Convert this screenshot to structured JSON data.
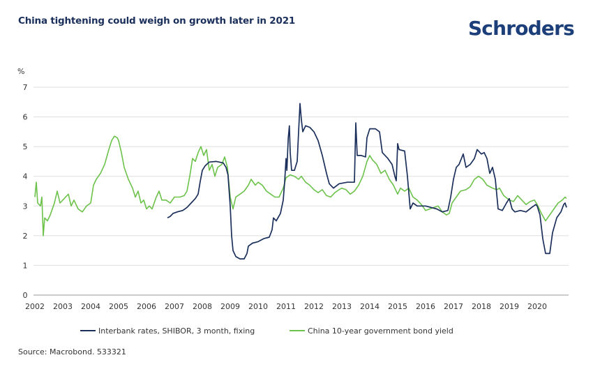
{
  "header": {
    "title": "China tightening could weigh on growth later in 2021",
    "brand": "Schroders"
  },
  "footer": {
    "source": "Source: Macrobond. 533321"
  },
  "colors": {
    "shibor": "#1b2f5b",
    "bond": "#6cc24a",
    "grid": "#dddddd",
    "axis": "#bbbbbb",
    "title": "#1b2f5b",
    "brand": "#1c3f7a"
  },
  "chart_data": {
    "type": "line",
    "title": "China tightening could weigh on growth later in 2021",
    "xlabel": "",
    "ylabel": "%",
    "xlim": [
      2002,
      2021.1
    ],
    "ylim": [
      0,
      7
    ],
    "yticks": [
      0,
      1,
      2,
      3,
      4,
      5,
      6,
      7
    ],
    "xtick_labels": [
      "2002",
      "2003",
      "2004",
      "2005",
      "2006",
      "2007",
      "2008",
      "2009",
      "2010",
      "2011",
      "2012",
      "2013",
      "2014",
      "2015",
      "2016",
      "2017",
      "2018",
      "2019",
      "2020"
    ],
    "grid": true,
    "legend_position": "bottom",
    "series": [
      {
        "name": "Interbank rates, SHIBOR, 3 month, fixing",
        "key": "shibor",
        "points": [
          [
            2006.75,
            2.6
          ],
          [
            2006.85,
            2.65
          ],
          [
            2006.95,
            2.75
          ],
          [
            2007.1,
            2.8
          ],
          [
            2007.3,
            2.85
          ],
          [
            2007.45,
            2.95
          ],
          [
            2007.6,
            3.1
          ],
          [
            2007.75,
            3.25
          ],
          [
            2007.85,
            3.4
          ],
          [
            2007.92,
            3.8
          ],
          [
            2008.0,
            4.2
          ],
          [
            2008.1,
            4.35
          ],
          [
            2008.25,
            4.48
          ],
          [
            2008.5,
            4.5
          ],
          [
            2008.75,
            4.45
          ],
          [
            2008.85,
            4.3
          ],
          [
            2008.92,
            4.05
          ],
          [
            2009.0,
            3.0
          ],
          [
            2009.05,
            2.0
          ],
          [
            2009.1,
            1.5
          ],
          [
            2009.2,
            1.3
          ],
          [
            2009.35,
            1.22
          ],
          [
            2009.5,
            1.22
          ],
          [
            2009.6,
            1.4
          ],
          [
            2009.65,
            1.65
          ],
          [
            2009.8,
            1.75
          ],
          [
            2010.0,
            1.8
          ],
          [
            2010.2,
            1.9
          ],
          [
            2010.4,
            1.95
          ],
          [
            2010.5,
            2.2
          ],
          [
            2010.55,
            2.6
          ],
          [
            2010.65,
            2.5
          ],
          [
            2010.8,
            2.75
          ],
          [
            2010.9,
            3.2
          ],
          [
            2010.95,
            3.8
          ],
          [
            2011.0,
            4.6
          ],
          [
            2011.03,
            4.2
          ],
          [
            2011.08,
            5.3
          ],
          [
            2011.12,
            5.7
          ],
          [
            2011.15,
            4.8
          ],
          [
            2011.2,
            4.2
          ],
          [
            2011.3,
            4.2
          ],
          [
            2011.4,
            4.5
          ],
          [
            2011.45,
            5.5
          ],
          [
            2011.5,
            6.45
          ],
          [
            2011.55,
            5.9
          ],
          [
            2011.6,
            5.5
          ],
          [
            2011.7,
            5.7
          ],
          [
            2011.85,
            5.65
          ],
          [
            2012.0,
            5.5
          ],
          [
            2012.15,
            5.2
          ],
          [
            2012.3,
            4.7
          ],
          [
            2012.45,
            4.1
          ],
          [
            2012.55,
            3.75
          ],
          [
            2012.7,
            3.6
          ],
          [
            2012.9,
            3.75
          ],
          [
            2013.2,
            3.8
          ],
          [
            2013.45,
            3.8
          ],
          [
            2013.5,
            5.8
          ],
          [
            2013.55,
            4.7
          ],
          [
            2013.7,
            4.7
          ],
          [
            2013.85,
            4.65
          ],
          [
            2013.9,
            5.3
          ],
          [
            2014.0,
            5.6
          ],
          [
            2014.2,
            5.6
          ],
          [
            2014.35,
            5.5
          ],
          [
            2014.45,
            4.8
          ],
          [
            2014.65,
            4.6
          ],
          [
            2014.8,
            4.4
          ],
          [
            2014.9,
            4.0
          ],
          [
            2014.95,
            3.85
          ],
          [
            2015.0,
            5.1
          ],
          [
            2015.05,
            4.9
          ],
          [
            2015.25,
            4.85
          ],
          [
            2015.35,
            4.0
          ],
          [
            2015.45,
            2.9
          ],
          [
            2015.55,
            3.1
          ],
          [
            2015.7,
            3.0
          ],
          [
            2016.0,
            3.0
          ],
          [
            2016.2,
            2.95
          ],
          [
            2016.4,
            2.9
          ],
          [
            2016.6,
            2.8
          ],
          [
            2016.8,
            2.85
          ],
          [
            2016.9,
            3.3
          ],
          [
            2017.0,
            3.9
          ],
          [
            2017.1,
            4.3
          ],
          [
            2017.2,
            4.4
          ],
          [
            2017.35,
            4.75
          ],
          [
            2017.45,
            4.3
          ],
          [
            2017.6,
            4.4
          ],
          [
            2017.75,
            4.6
          ],
          [
            2017.85,
            4.9
          ],
          [
            2018.0,
            4.75
          ],
          [
            2018.1,
            4.8
          ],
          [
            2018.2,
            4.6
          ],
          [
            2018.3,
            4.1
          ],
          [
            2018.4,
            4.3
          ],
          [
            2018.5,
            3.9
          ],
          [
            2018.6,
            2.9
          ],
          [
            2018.75,
            2.85
          ],
          [
            2018.9,
            3.1
          ],
          [
            2019.0,
            3.25
          ],
          [
            2019.1,
            2.9
          ],
          [
            2019.2,
            2.8
          ],
          [
            2019.4,
            2.85
          ],
          [
            2019.6,
            2.8
          ],
          [
            2019.8,
            2.95
          ],
          [
            2019.95,
            3.05
          ],
          [
            2020.0,
            3.0
          ],
          [
            2020.1,
            2.7
          ],
          [
            2020.2,
            1.9
          ],
          [
            2020.3,
            1.4
          ],
          [
            2020.45,
            1.4
          ],
          [
            2020.55,
            2.1
          ],
          [
            2020.7,
            2.6
          ],
          [
            2020.85,
            2.8
          ],
          [
            2020.95,
            3.05
          ],
          [
            2021.0,
            3.1
          ],
          [
            2021.05,
            2.95
          ]
        ]
      },
      {
        "name": "China 10-year government bond yield",
        "key": "bond",
        "points": [
          [
            2002.0,
            3.3
          ],
          [
            2002.05,
            3.8
          ],
          [
            2002.1,
            3.1
          ],
          [
            2002.2,
            3.0
          ],
          [
            2002.25,
            3.3
          ],
          [
            2002.3,
            2.0
          ],
          [
            2002.35,
            2.6
          ],
          [
            2002.45,
            2.5
          ],
          [
            2002.55,
            2.7
          ],
          [
            2002.7,
            3.1
          ],
          [
            2002.8,
            3.5
          ],
          [
            2002.9,
            3.1
          ],
          [
            2003.0,
            3.2
          ],
          [
            2003.1,
            3.3
          ],
          [
            2003.2,
            3.4
          ],
          [
            2003.3,
            3.0
          ],
          [
            2003.4,
            3.2
          ],
          [
            2003.55,
            2.9
          ],
          [
            2003.7,
            2.8
          ],
          [
            2003.85,
            3.0
          ],
          [
            2004.0,
            3.1
          ],
          [
            2004.1,
            3.7
          ],
          [
            2004.2,
            3.9
          ],
          [
            2004.35,
            4.1
          ],
          [
            2004.5,
            4.4
          ],
          [
            2004.65,
            4.9
          ],
          [
            2004.75,
            5.2
          ],
          [
            2004.85,
            5.35
          ],
          [
            2004.95,
            5.3
          ],
          [
            2005.0,
            5.2
          ],
          [
            2005.1,
            4.8
          ],
          [
            2005.2,
            4.3
          ],
          [
            2005.35,
            3.9
          ],
          [
            2005.5,
            3.6
          ],
          [
            2005.6,
            3.3
          ],
          [
            2005.7,
            3.5
          ],
          [
            2005.8,
            3.1
          ],
          [
            2005.9,
            3.2
          ],
          [
            2006.0,
            2.9
          ],
          [
            2006.1,
            3.0
          ],
          [
            2006.2,
            2.9
          ],
          [
            2006.35,
            3.3
          ],
          [
            2006.45,
            3.5
          ],
          [
            2006.55,
            3.2
          ],
          [
            2006.7,
            3.2
          ],
          [
            2006.85,
            3.1
          ],
          [
            2007.0,
            3.3
          ],
          [
            2007.2,
            3.3
          ],
          [
            2007.35,
            3.35
          ],
          [
            2007.45,
            3.5
          ],
          [
            2007.55,
            4.0
          ],
          [
            2007.65,
            4.6
          ],
          [
            2007.75,
            4.5
          ],
          [
            2007.85,
            4.8
          ],
          [
            2007.95,
            5.0
          ],
          [
            2008.05,
            4.7
          ],
          [
            2008.15,
            4.9
          ],
          [
            2008.25,
            4.2
          ],
          [
            2008.35,
            4.4
          ],
          [
            2008.45,
            4.0
          ],
          [
            2008.55,
            4.3
          ],
          [
            2008.7,
            4.4
          ],
          [
            2008.8,
            4.65
          ],
          [
            2008.9,
            4.3
          ],
          [
            2008.95,
            3.8
          ],
          [
            2009.0,
            3.3
          ],
          [
            2009.1,
            2.9
          ],
          [
            2009.2,
            3.3
          ],
          [
            2009.35,
            3.4
          ],
          [
            2009.5,
            3.5
          ],
          [
            2009.65,
            3.7
          ],
          [
            2009.75,
            3.9
          ],
          [
            2009.9,
            3.7
          ],
          [
            2010.0,
            3.8
          ],
          [
            2010.15,
            3.7
          ],
          [
            2010.3,
            3.5
          ],
          [
            2010.45,
            3.4
          ],
          [
            2010.6,
            3.3
          ],
          [
            2010.75,
            3.3
          ],
          [
            2010.9,
            3.6
          ],
          [
            2011.0,
            3.95
          ],
          [
            2011.15,
            4.05
          ],
          [
            2011.3,
            4.0
          ],
          [
            2011.45,
            3.9
          ],
          [
            2011.55,
            4.0
          ],
          [
            2011.7,
            3.8
          ],
          [
            2011.85,
            3.7
          ],
          [
            2012.0,
            3.55
          ],
          [
            2012.15,
            3.45
          ],
          [
            2012.3,
            3.55
          ],
          [
            2012.45,
            3.35
          ],
          [
            2012.6,
            3.3
          ],
          [
            2012.75,
            3.45
          ],
          [
            2012.9,
            3.55
          ],
          [
            2013.0,
            3.6
          ],
          [
            2013.15,
            3.55
          ],
          [
            2013.3,
            3.4
          ],
          [
            2013.45,
            3.5
          ],
          [
            2013.6,
            3.7
          ],
          [
            2013.75,
            4.0
          ],
          [
            2013.9,
            4.5
          ],
          [
            2014.0,
            4.7
          ],
          [
            2014.1,
            4.55
          ],
          [
            2014.25,
            4.4
          ],
          [
            2014.4,
            4.1
          ],
          [
            2014.55,
            4.2
          ],
          [
            2014.7,
            3.9
          ],
          [
            2014.85,
            3.7
          ],
          [
            2015.0,
            3.4
          ],
          [
            2015.1,
            3.6
          ],
          [
            2015.25,
            3.5
          ],
          [
            2015.4,
            3.6
          ],
          [
            2015.55,
            3.3
          ],
          [
            2015.7,
            3.2
          ],
          [
            2015.85,
            3.05
          ],
          [
            2016.0,
            2.85
          ],
          [
            2016.15,
            2.9
          ],
          [
            2016.3,
            2.95
          ],
          [
            2016.45,
            3.0
          ],
          [
            2016.6,
            2.8
          ],
          [
            2016.75,
            2.7
          ],
          [
            2016.85,
            2.75
          ],
          [
            2016.95,
            3.1
          ],
          [
            2017.1,
            3.3
          ],
          [
            2017.25,
            3.5
          ],
          [
            2017.45,
            3.55
          ],
          [
            2017.6,
            3.65
          ],
          [
            2017.75,
            3.9
          ],
          [
            2017.9,
            4.0
          ],
          [
            2018.05,
            3.9
          ],
          [
            2018.2,
            3.7
          ],
          [
            2018.4,
            3.6
          ],
          [
            2018.55,
            3.55
          ],
          [
            2018.65,
            3.6
          ],
          [
            2018.8,
            3.35
          ],
          [
            2019.0,
            3.2
          ],
          [
            2019.15,
            3.15
          ],
          [
            2019.3,
            3.35
          ],
          [
            2019.45,
            3.2
          ],
          [
            2019.6,
            3.05
          ],
          [
            2019.75,
            3.15
          ],
          [
            2019.9,
            3.2
          ],
          [
            2020.0,
            3.05
          ],
          [
            2020.15,
            2.75
          ],
          [
            2020.3,
            2.5
          ],
          [
            2020.45,
            2.7
          ],
          [
            2020.6,
            2.9
          ],
          [
            2020.75,
            3.1
          ],
          [
            2020.9,
            3.2
          ],
          [
            2021.0,
            3.3
          ],
          [
            2021.05,
            3.25
          ]
        ]
      }
    ]
  }
}
